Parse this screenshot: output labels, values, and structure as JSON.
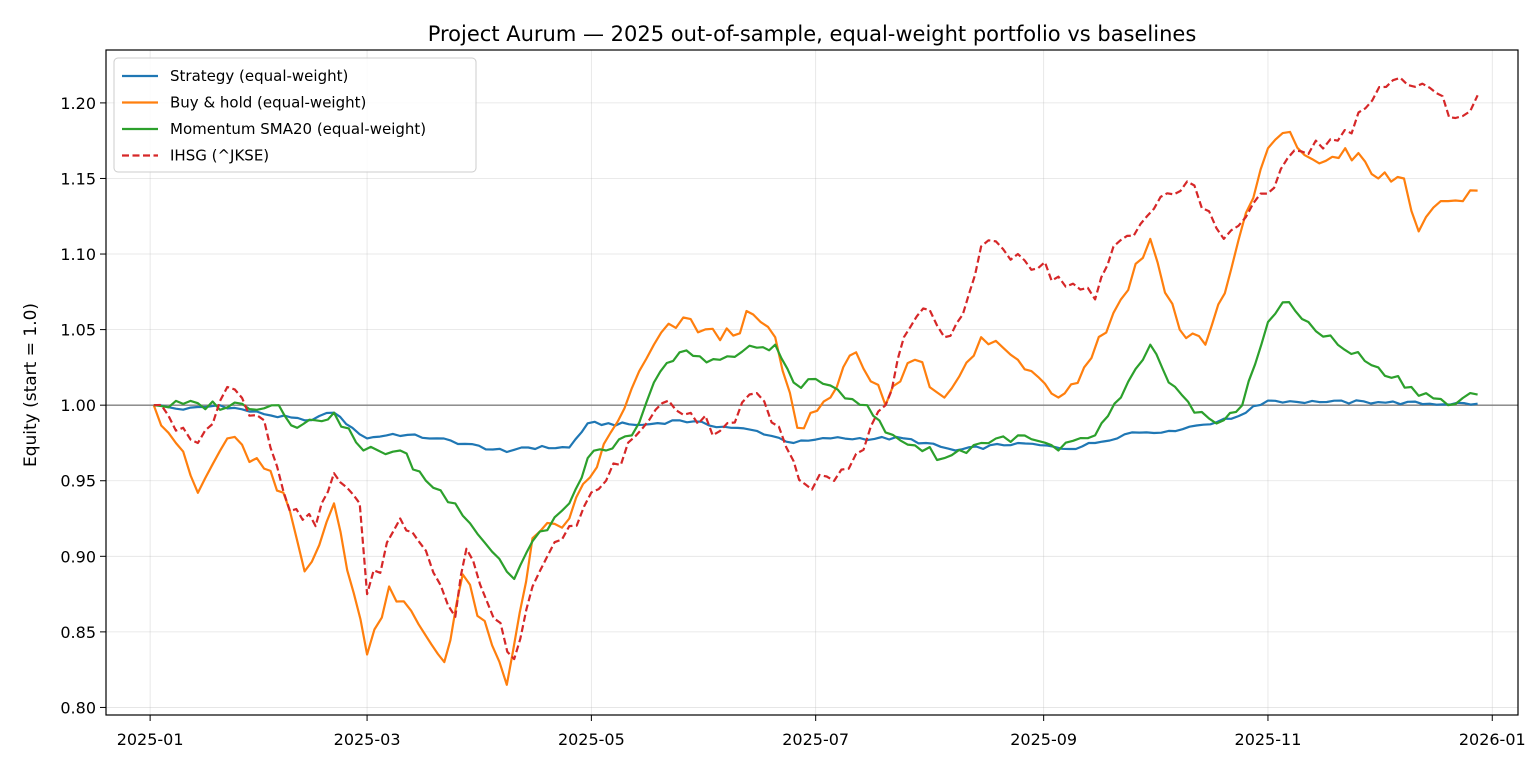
{
  "chart_data": {
    "type": "line",
    "title": "Project Aurum — 2025 out-of-sample, equal-weight portfolio vs baselines",
    "xlabel": "",
    "ylabel": "Equity (start = 1.0)",
    "x_range": [
      "2024-12-20",
      "2026-01-08"
    ],
    "ylim": [
      0.795,
      1.235
    ],
    "x_ticks": [
      "2025-01",
      "2025-03",
      "2025-05",
      "2025-07",
      "2025-09",
      "2025-11",
      "2026-01"
    ],
    "y_ticks": [
      "0.80",
      "0.85",
      "0.90",
      "0.95",
      "1.00",
      "1.05",
      "1.10",
      "1.15",
      "1.20"
    ],
    "grid": true,
    "reference_line": 1.0,
    "legend_position": "top-left",
    "series": [
      {
        "name": "Strategy (equal-weight)",
        "color": "#1f77b4",
        "style": "solid",
        "points": [
          [
            "2025-01-02",
            1.0
          ],
          [
            "2025-01-10",
            0.997
          ],
          [
            "2025-01-20",
            1.0
          ],
          [
            "2025-02-01",
            0.994
          ],
          [
            "2025-02-12",
            0.99
          ],
          [
            "2025-02-20",
            0.995
          ],
          [
            "2025-02-25",
            0.985
          ],
          [
            "2025-03-01",
            0.978
          ],
          [
            "2025-03-08",
            0.981
          ],
          [
            "2025-03-20",
            0.978
          ],
          [
            "2025-04-08",
            0.969
          ],
          [
            "2025-04-12",
            0.972
          ],
          [
            "2025-04-25",
            0.972
          ],
          [
            "2025-04-30",
            0.988
          ],
          [
            "2025-05-15",
            0.987
          ],
          [
            "2025-05-25",
            0.99
          ],
          [
            "2025-06-08",
            0.985
          ],
          [
            "2025-06-15",
            0.983
          ],
          [
            "2025-06-25",
            0.975
          ],
          [
            "2025-07-05",
            0.978
          ],
          [
            "2025-07-25",
            0.978
          ],
          [
            "2025-08-08",
            0.97
          ],
          [
            "2025-08-25",
            0.975
          ],
          [
            "2025-09-08",
            0.971
          ],
          [
            "2025-09-15",
            0.975
          ],
          [
            "2025-09-25",
            0.982
          ],
          [
            "2025-10-05",
            0.983
          ],
          [
            "2025-10-22",
            0.991
          ],
          [
            "2025-11-01",
            1.003
          ],
          [
            "2025-11-15",
            1.002
          ],
          [
            "2025-12-01",
            1.002
          ],
          [
            "2025-12-15",
            1.001
          ],
          [
            "2025-12-28",
            1.001
          ]
        ]
      },
      {
        "name": "Buy & hold (equal-weight)",
        "color": "#ff7f0e",
        "style": "solid",
        "points": [
          [
            "2025-01-02",
            1.0
          ],
          [
            "2025-01-08",
            0.975
          ],
          [
            "2025-01-14",
            0.942
          ],
          [
            "2025-01-22",
            0.978
          ],
          [
            "2025-02-01",
            0.958
          ],
          [
            "2025-02-08",
            0.93
          ],
          [
            "2025-02-12",
            0.89
          ],
          [
            "2025-02-20",
            0.935
          ],
          [
            "2025-03-01",
            0.835
          ],
          [
            "2025-03-07",
            0.88
          ],
          [
            "2025-03-15",
            0.855
          ],
          [
            "2025-03-22",
            0.83
          ],
          [
            "2025-03-27",
            0.888
          ],
          [
            "2025-04-08",
            0.815
          ],
          [
            "2025-04-15",
            0.912
          ],
          [
            "2025-04-25",
            0.925
          ],
          [
            "2025-05-10",
            0.998
          ],
          [
            "2025-05-18",
            1.04
          ],
          [
            "2025-05-26",
            1.058
          ],
          [
            "2025-06-05",
            1.043
          ],
          [
            "2025-06-14",
            1.06
          ],
          [
            "2025-06-20",
            1.045
          ],
          [
            "2025-06-26",
            0.985
          ],
          [
            "2025-07-05",
            1.005
          ],
          [
            "2025-07-12",
            1.035
          ],
          [
            "2025-07-20",
            1.0
          ],
          [
            "2025-07-28",
            1.03
          ],
          [
            "2025-08-05",
            1.005
          ],
          [
            "2025-08-15",
            1.045
          ],
          [
            "2025-08-25",
            1.03
          ],
          [
            "2025-09-05",
            1.005
          ],
          [
            "2025-09-12",
            1.025
          ],
          [
            "2025-09-22",
            1.07
          ],
          [
            "2025-09-30",
            1.11
          ],
          [
            "2025-10-08",
            1.05
          ],
          [
            "2025-10-15",
            1.04
          ],
          [
            "2025-10-22",
            1.09
          ],
          [
            "2025-11-01",
            1.17
          ],
          [
            "2025-11-05",
            1.18
          ],
          [
            "2025-11-15",
            1.16
          ],
          [
            "2025-11-22",
            1.17
          ],
          [
            "2025-12-01",
            1.15
          ],
          [
            "2025-12-08",
            1.15
          ],
          [
            "2025-12-12",
            1.115
          ],
          [
            "2025-12-20",
            1.135
          ],
          [
            "2025-12-28",
            1.142
          ]
        ]
      },
      {
        "name": "Momentum SMA20 (equal-weight)",
        "color": "#2ca02c",
        "style": "solid",
        "points": [
          [
            "2025-01-02",
            1.0
          ],
          [
            "2025-02-05",
            1.0
          ],
          [
            "2025-02-10",
            0.985
          ],
          [
            "2025-02-15",
            0.99
          ],
          [
            "2025-02-20",
            0.995
          ],
          [
            "2025-02-28",
            0.97
          ],
          [
            "2025-03-10",
            0.97
          ],
          [
            "2025-03-17",
            0.95
          ],
          [
            "2025-03-25",
            0.935
          ],
          [
            "2025-04-10",
            0.885
          ],
          [
            "2025-04-15",
            0.91
          ],
          [
            "2025-04-25",
            0.935
          ],
          [
            "2025-04-30",
            0.965
          ],
          [
            "2025-05-05",
            0.97
          ],
          [
            "2025-05-12",
            0.98
          ],
          [
            "2025-05-18",
            1.015
          ],
          [
            "2025-05-25",
            1.035
          ],
          [
            "2025-06-05",
            1.03
          ],
          [
            "2025-06-15",
            1.038
          ],
          [
            "2025-06-20",
            1.04
          ],
          [
            "2025-06-25",
            1.015
          ],
          [
            "2025-07-05",
            1.013
          ],
          [
            "2025-07-15",
            1.0
          ],
          [
            "2025-07-20",
            0.982
          ],
          [
            "2025-08-05",
            0.965
          ],
          [
            "2025-08-15",
            0.975
          ],
          [
            "2025-08-25",
            0.98
          ],
          [
            "2025-09-05",
            0.97
          ],
          [
            "2025-09-15",
            0.98
          ],
          [
            "2025-09-22",
            1.005
          ],
          [
            "2025-09-30",
            1.04
          ],
          [
            "2025-10-05",
            1.015
          ],
          [
            "2025-10-12",
            0.995
          ],
          [
            "2025-10-20",
            0.99
          ],
          [
            "2025-10-25",
            1.0
          ],
          [
            "2025-11-01",
            1.055
          ],
          [
            "2025-11-05",
            1.068
          ],
          [
            "2025-11-12",
            1.055
          ],
          [
            "2025-11-20",
            1.04
          ],
          [
            "2025-12-01",
            1.025
          ],
          [
            "2025-12-10",
            1.012
          ],
          [
            "2025-12-20",
            1.0
          ],
          [
            "2025-12-28",
            1.007
          ]
        ]
      },
      {
        "name": "IHSG (^JKSE)",
        "color": "#d62728",
        "style": "dashed",
        "points": [
          [
            "2025-01-02",
            1.0
          ],
          [
            "2025-01-10",
            0.985
          ],
          [
            "2025-01-14",
            0.975
          ],
          [
            "2025-01-22",
            1.012
          ],
          [
            "2025-02-01",
            0.99
          ],
          [
            "2025-02-08",
            0.93
          ],
          [
            "2025-02-15",
            0.92
          ],
          [
            "2025-02-20",
            0.955
          ],
          [
            "2025-02-27",
            0.935
          ],
          [
            "2025-03-01",
            0.875
          ],
          [
            "2025-03-10",
            0.925
          ],
          [
            "2025-03-15",
            0.91
          ],
          [
            "2025-03-25",
            0.86
          ],
          [
            "2025-03-28",
            0.905
          ],
          [
            "2025-04-10",
            0.832
          ],
          [
            "2025-04-15",
            0.88
          ],
          [
            "2025-04-25",
            0.92
          ],
          [
            "2025-05-05",
            0.95
          ],
          [
            "2025-05-15",
            0.985
          ],
          [
            "2025-05-22",
            1.003
          ],
          [
            "2025-06-05",
            0.983
          ],
          [
            "2025-06-15",
            1.008
          ],
          [
            "2025-06-25",
            0.963
          ],
          [
            "2025-06-28",
            0.948
          ],
          [
            "2025-07-10",
            0.958
          ],
          [
            "2025-07-20",
            1.0
          ],
          [
            "2025-07-25",
            1.045
          ],
          [
            "2025-08-01",
            1.063
          ],
          [
            "2025-08-05",
            1.045
          ],
          [
            "2025-08-10",
            1.06
          ],
          [
            "2025-08-15",
            1.105
          ],
          [
            "2025-08-25",
            1.1
          ],
          [
            "2025-09-05",
            1.085
          ],
          [
            "2025-09-15",
            1.07
          ],
          [
            "2025-09-20",
            1.105
          ],
          [
            "2025-10-01",
            1.13
          ],
          [
            "2025-10-10",
            1.148
          ],
          [
            "2025-10-20",
            1.11
          ],
          [
            "2025-10-30",
            1.14
          ],
          [
            "2025-11-10",
            1.168
          ],
          [
            "2025-11-20",
            1.175
          ],
          [
            "2025-12-05",
            1.215
          ],
          [
            "2025-12-15",
            1.21
          ],
          [
            "2025-12-22",
            1.19
          ],
          [
            "2025-12-28",
            1.205
          ]
        ]
      }
    ]
  }
}
